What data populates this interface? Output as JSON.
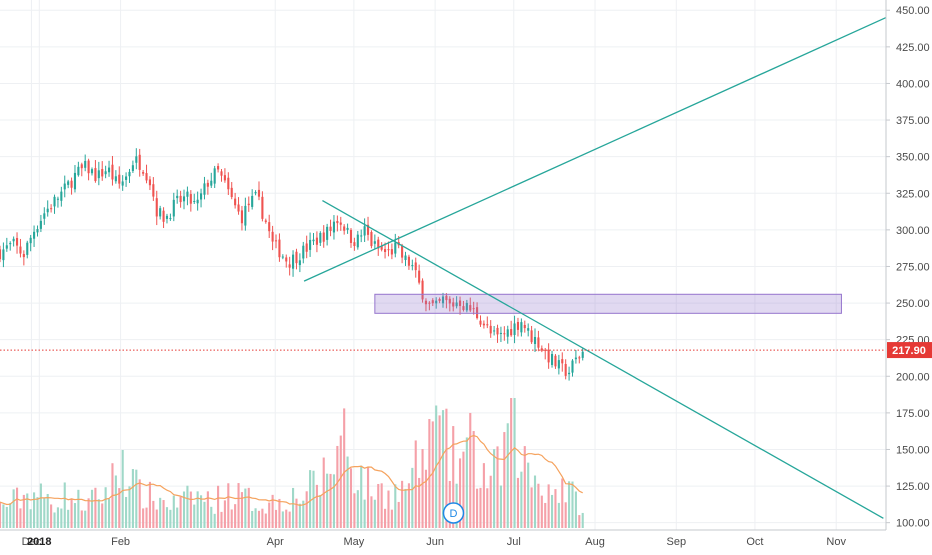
{
  "chart_data": {
    "type": "candlestick",
    "y_axis": {
      "min": 95,
      "max": 457,
      "ticks": [
        100,
        125,
        150,
        175,
        200,
        225,
        250,
        275,
        300,
        325,
        350,
        375,
        400,
        425,
        450
      ],
      "position": "right"
    },
    "x_axis": {
      "labels": [
        {
          "text": "Dec",
          "day": -3
        },
        {
          "text": "2018",
          "day": 0,
          "bold": true
        },
        {
          "text": "Feb",
          "day": 31
        },
        {
          "text": "Apr",
          "day": 90
        },
        {
          "text": "May",
          "day": 120
        },
        {
          "text": "Jun",
          "day": 151
        },
        {
          "text": "Jul",
          "day": 181
        },
        {
          "text": "Aug",
          "day": 212
        },
        {
          "text": "Sep",
          "day": 243
        },
        {
          "text": "Oct",
          "day": 273
        },
        {
          "text": "Nov",
          "day": 304
        }
      ],
      "range_days": [
        -15,
        323
      ]
    },
    "price_close_line": {
      "value": 217.9,
      "label": "217.90",
      "color": "#e53935"
    },
    "resistance_zone": {
      "from_day": 128,
      "to_day": 306,
      "low": 243,
      "high": 256,
      "color": "#9575cd"
    },
    "trend_lines": [
      {
        "from": {
          "day": 101,
          "value": 265
        },
        "to": {
          "day": 323,
          "value": 445
        },
        "color": "#26a69a"
      },
      {
        "from": {
          "day": 108,
          "value": 320
        },
        "to": {
          "day": 322,
          "value": 103
        },
        "color": "#26a69a"
      }
    ],
    "close_path": [
      {
        "day": -15,
        "value": 285
      },
      {
        "day": -10,
        "value": 290
      },
      {
        "day": -6,
        "value": 283
      },
      {
        "day": -2,
        "value": 300
      },
      {
        "day": 2,
        "value": 312
      },
      {
        "day": 6,
        "value": 320
      },
      {
        "day": 10,
        "value": 328
      },
      {
        "day": 14,
        "value": 338
      },
      {
        "day": 18,
        "value": 343
      },
      {
        "day": 22,
        "value": 336
      },
      {
        "day": 26,
        "value": 342
      },
      {
        "day": 30,
        "value": 330
      },
      {
        "day": 33,
        "value": 336
      },
      {
        "day": 36,
        "value": 348
      },
      {
        "day": 39,
        "value": 345
      },
      {
        "day": 42,
        "value": 335
      },
      {
        "day": 45,
        "value": 312
      },
      {
        "day": 48,
        "value": 308
      },
      {
        "day": 52,
        "value": 318
      },
      {
        "day": 56,
        "value": 322
      },
      {
        "day": 60,
        "value": 316
      },
      {
        "day": 64,
        "value": 332
      },
      {
        "day": 68,
        "value": 340
      },
      {
        "day": 71,
        "value": 330
      },
      {
        "day": 74,
        "value": 318
      },
      {
        "day": 77,
        "value": 308
      },
      {
        "day": 80,
        "value": 318
      },
      {
        "day": 83,
        "value": 322
      },
      {
        "day": 86,
        "value": 308
      },
      {
        "day": 89,
        "value": 290
      },
      {
        "day": 92,
        "value": 285
      },
      {
        "day": 95,
        "value": 278
      },
      {
        "day": 98,
        "value": 282
      },
      {
        "day": 101,
        "value": 286
      },
      {
        "day": 105,
        "value": 292
      },
      {
        "day": 108,
        "value": 296
      },
      {
        "day": 111,
        "value": 300
      },
      {
        "day": 113,
        "value": 308
      },
      {
        "day": 116,
        "value": 304
      },
      {
        "day": 118,
        "value": 296
      },
      {
        "day": 121,
        "value": 292
      },
      {
        "day": 124,
        "value": 300
      },
      {
        "day": 127,
        "value": 290
      },
      {
        "day": 130,
        "value": 286
      },
      {
        "day": 133,
        "value": 284
      },
      {
        "day": 136,
        "value": 288
      },
      {
        "day": 139,
        "value": 280
      },
      {
        "day": 142,
        "value": 276
      },
      {
        "day": 145,
        "value": 262
      },
      {
        "day": 148,
        "value": 250
      },
      {
        "day": 151,
        "value": 246
      },
      {
        "day": 154,
        "value": 252
      },
      {
        "day": 157,
        "value": 248
      },
      {
        "day": 160,
        "value": 252
      },
      {
        "day": 163,
        "value": 247
      },
      {
        "day": 166,
        "value": 244
      },
      {
        "day": 169,
        "value": 238
      },
      {
        "day": 172,
        "value": 229
      },
      {
        "day": 175,
        "value": 226
      },
      {
        "day": 178,
        "value": 230
      },
      {
        "day": 181,
        "value": 234
      },
      {
        "day": 184,
        "value": 238
      },
      {
        "day": 187,
        "value": 228
      },
      {
        "day": 190,
        "value": 224
      },
      {
        "day": 193,
        "value": 216
      },
      {
        "day": 196,
        "value": 210
      },
      {
        "day": 199,
        "value": 205
      },
      {
        "day": 202,
        "value": 203
      },
      {
        "day": 205,
        "value": 212
      },
      {
        "day": 208,
        "value": 218
      }
    ],
    "volume_path": [
      {
        "day": -15,
        "value": 18
      },
      {
        "day": -8,
        "value": 25
      },
      {
        "day": -2,
        "value": 30
      },
      {
        "day": 5,
        "value": 22
      },
      {
        "day": 10,
        "value": 28
      },
      {
        "day": 18,
        "value": 20
      },
      {
        "day": 25,
        "value": 30
      },
      {
        "day": 32,
        "value": 55
      },
      {
        "day": 38,
        "value": 30
      },
      {
        "day": 45,
        "value": 24
      },
      {
        "day": 52,
        "value": 20
      },
      {
        "day": 60,
        "value": 28
      },
      {
        "day": 66,
        "value": 22
      },
      {
        "day": 72,
        "value": 30
      },
      {
        "day": 78,
        "value": 26
      },
      {
        "day": 85,
        "value": 20
      },
      {
        "day": 92,
        "value": 24
      },
      {
        "day": 100,
        "value": 28
      },
      {
        "day": 107,
        "value": 40
      },
      {
        "day": 112,
        "value": 55
      },
      {
        "day": 116,
        "value": 80
      },
      {
        "day": 120,
        "value": 50
      },
      {
        "day": 126,
        "value": 34
      },
      {
        "day": 132,
        "value": 30
      },
      {
        "day": 138,
        "value": 30
      },
      {
        "day": 144,
        "value": 52
      },
      {
        "day": 147,
        "value": 60
      },
      {
        "day": 150,
        "value": 70
      },
      {
        "day": 153,
        "value": 88
      },
      {
        "day": 156,
        "value": 62
      },
      {
        "day": 160,
        "value": 55
      },
      {
        "day": 164,
        "value": 72
      },
      {
        "day": 168,
        "value": 48
      },
      {
        "day": 172,
        "value": 42
      },
      {
        "day": 176,
        "value": 52
      },
      {
        "day": 180,
        "value": 100
      },
      {
        "day": 184,
        "value": 58
      },
      {
        "day": 188,
        "value": 44
      },
      {
        "day": 192,
        "value": 38
      },
      {
        "day": 196,
        "value": 32
      },
      {
        "day": 200,
        "value": 36
      },
      {
        "day": 203,
        "value": 28
      },
      {
        "day": 206,
        "value": 22
      },
      {
        "day": 208,
        "value": 8
      }
    ],
    "volume_marker_day": 190,
    "volume_spikes": [
      {
        "day": 116,
        "value": 92
      },
      {
        "day": 150,
        "value": 82
      },
      {
        "day": 180,
        "value": 100
      },
      {
        "day": 32,
        "value": 60
      }
    ],
    "candle_step_days": 1.3,
    "volume_max_value": 100,
    "volume_band_px": {
      "top": 398,
      "bottom": 528
    },
    "volume_ma": {
      "color": "#f5a25d"
    },
    "colors": {
      "up": "#26a69a",
      "down": "#ef5350",
      "up_volume": "#9fd8c8",
      "down_volume": "#f5a0a8"
    }
  },
  "chart_badge": {
    "label": "D",
    "day": 158,
    "color": "#1e88e5"
  }
}
